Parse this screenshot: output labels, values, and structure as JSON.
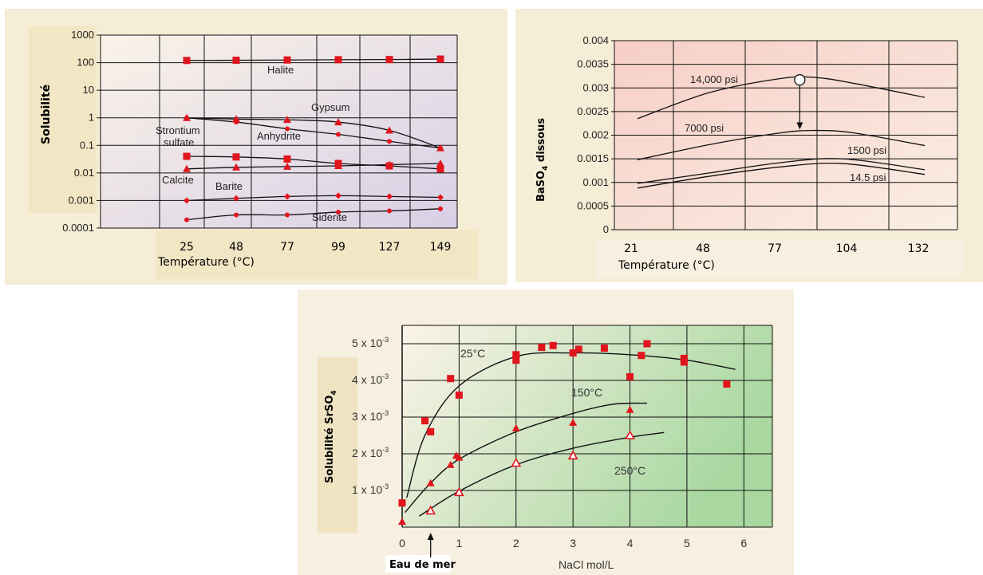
{
  "colors": {
    "marker": "#e0151d",
    "curve": "#111111",
    "grid": "#111111",
    "panel_bg": "#f5edd5"
  },
  "chart_data": [
    {
      "id": "solubility_minerals",
      "type": "line",
      "y_scale": "log",
      "ylim": [
        0.0001,
        1000
      ],
      "y_ticks": [
        "1000",
        "100",
        "10",
        "1",
        "0.1",
        "0.01",
        "0.001",
        "0.0001"
      ],
      "categories": [
        "25",
        "48",
        "77",
        "99",
        "127",
        "149"
      ],
      "ylabel": "Solubilité",
      "xlabel": "Température (°C)",
      "grid": true,
      "series": [
        {
          "name": "Halite",
          "marker": "square",
          "values": [
            120,
            122,
            125,
            128,
            130,
            135
          ]
        },
        {
          "name": "Gypsum",
          "marker": "triangle",
          "values": [
            1.0,
            0.9,
            0.85,
            0.7,
            0.35,
            0.08
          ]
        },
        {
          "name": "Anhydrite",
          "marker": "circle",
          "values": [
            1.0,
            0.7,
            0.4,
            0.25,
            0.14,
            0.08
          ]
        },
        {
          "name": "Strontium sulfate",
          "marker": "square",
          "values": [
            0.04,
            0.038,
            0.032,
            0.022,
            0.018,
            0.014
          ]
        },
        {
          "name": "Calcite",
          "marker": "triangle",
          "values": [
            0.014,
            0.016,
            0.017,
            0.018,
            0.02,
            0.022
          ]
        },
        {
          "name": "Barite",
          "marker": "diamond",
          "values": [
            0.001,
            0.0012,
            0.0014,
            0.0015,
            0.0014,
            0.0013
          ]
        },
        {
          "name": "Siderite",
          "marker": "circle",
          "values": [
            0.0002,
            0.0003,
            0.0003,
            0.00038,
            0.00042,
            0.0005
          ]
        }
      ],
      "labels": {
        "halite": "Halite",
        "gypsum": "Gypsum",
        "strontium": "Strontium",
        "sulfate": "sulfate",
        "anhydrite": "Anhydrite",
        "calcite": "Calcite",
        "barite": "Barite",
        "siderite": "Siderite"
      }
    },
    {
      "id": "baso4_pressure",
      "type": "line",
      "ylim": [
        0,
        0.004
      ],
      "y_ticks": [
        "0.004",
        "0.0035",
        "0.003",
        "0.0025",
        "0.002",
        "0.0015",
        "0.001",
        "0.0005",
        "0"
      ],
      "x_ticks": [
        "21",
        "48",
        "77",
        "104",
        "132"
      ],
      "ylabel_main": "BaSO",
      "ylabel_sub": "4",
      "ylabel_rest": " dissous",
      "xlabel": "Température (°C)",
      "grid": true,
      "series": [
        {
          "name": "14,000 psi",
          "x": [
            21,
            48,
            77,
            90,
            104,
            132
          ],
          "y": [
            0.00235,
            0.0029,
            0.0032,
            0.00322,
            0.0031,
            0.0028
          ]
        },
        {
          "name": "7000 psi",
          "x": [
            21,
            48,
            77,
            90,
            104,
            132
          ],
          "y": [
            0.00148,
            0.0018,
            0.00205,
            0.0021,
            0.00205,
            0.00178
          ]
        },
        {
          "name": "1500 psi",
          "x": [
            21,
            48,
            77,
            100,
            132
          ],
          "y": [
            0.00098,
            0.0012,
            0.00142,
            0.0015,
            0.00127
          ]
        },
        {
          "name": "14.5 psi",
          "x": [
            21,
            48,
            77,
            100,
            132
          ],
          "y": [
            0.00088,
            0.00113,
            0.00133,
            0.0014,
            0.00117
          ]
        }
      ],
      "annotation": {
        "x": 84,
        "y_from": 0.00317,
        "y_to": 0.00212
      }
    },
    {
      "id": "srso4_nacl",
      "type": "scatter",
      "xlim": [
        0,
        6.5
      ],
      "ylim": [
        0,
        0.0055
      ],
      "x_ticks": [
        "0",
        "1",
        "2",
        "3",
        "4",
        "5",
        "6"
      ],
      "y_ticks": [
        {
          "base": "5 x 10",
          "exp": "-3"
        },
        {
          "base": "4 x 10",
          "exp": "-3"
        },
        {
          "base": "3 x 10",
          "exp": "-3"
        },
        {
          "base": "2 x 10",
          "exp": "-3"
        },
        {
          "base": "1 x 10",
          "exp": "-3"
        }
      ],
      "ylabel_main": "Solubilité SrSO",
      "ylabel_sub": "4",
      "xlabel": "NaCl mol/L",
      "arrow_label": "Eau de mer",
      "arrow_x": 0.5,
      "grid": true,
      "series": [
        {
          "name": "25°C",
          "marker": "square",
          "points": [
            [
              0,
              0.00066
            ],
            [
              0.4,
              0.0029
            ],
            [
              0.5,
              0.0026
            ],
            [
              0.85,
              0.00405
            ],
            [
              1.0,
              0.0036
            ],
            [
              2.0,
              0.0047
            ],
            [
              2.0,
              0.00455
            ],
            [
              2.45,
              0.0049
            ],
            [
              2.65,
              0.00495
            ],
            [
              3.0,
              0.00475
            ],
            [
              3.1,
              0.00485
            ],
            [
              3.55,
              0.00488
            ],
            [
              4.0,
              0.0041
            ],
            [
              4.2,
              0.00468
            ],
            [
              4.3,
              0.005
            ],
            [
              4.95,
              0.0046
            ],
            [
              4.95,
              0.0045
            ],
            [
              5.7,
              0.0039
            ]
          ],
          "curve": [
            [
              0.08,
              0.0008
            ],
            [
              0.4,
              0.0025
            ],
            [
              1.0,
              0.00385
            ],
            [
              2.0,
              0.00465
            ],
            [
              3.0,
              0.00475
            ],
            [
              4.0,
              0.0047
            ],
            [
              5.0,
              0.00455
            ],
            [
              5.85,
              0.0043
            ]
          ]
        },
        {
          "name": "150°C",
          "marker": "triangle",
          "points": [
            [
              0,
              0.00015
            ],
            [
              0.5,
              0.0012
            ],
            [
              0.85,
              0.0017
            ],
            [
              0.95,
              0.00195
            ],
            [
              1.0,
              0.0019
            ],
            [
              2.0,
              0.0027
            ],
            [
              3.0,
              0.00285
            ],
            [
              4.0,
              0.0032
            ]
          ],
          "curve": [
            [
              0.05,
              0.0004
            ],
            [
              0.5,
              0.0012
            ],
            [
              1.0,
              0.00185
            ],
            [
              2.0,
              0.0026
            ],
            [
              3.0,
              0.0031
            ],
            [
              3.7,
              0.00335
            ],
            [
              4.3,
              0.00338
            ]
          ]
        },
        {
          "name": "250°C",
          "marker": "open-triangle",
          "points": [
            [
              0.5,
              0.00045
            ],
            [
              1.0,
              0.00095
            ],
            [
              2.0,
              0.00175
            ],
            [
              3.0,
              0.00195
            ],
            [
              4.0,
              0.0025
            ]
          ],
          "curve": [
            [
              0.3,
              0.0003
            ],
            [
              1.0,
              0.00098
            ],
            [
              2.0,
              0.0017
            ],
            [
              3.0,
              0.00215
            ],
            [
              4.0,
              0.00245
            ],
            [
              4.6,
              0.00258
            ]
          ]
        }
      ],
      "curve_labels": {
        "t25": "25°C",
        "t150": "150°C",
        "t250": "250°C"
      }
    }
  ]
}
